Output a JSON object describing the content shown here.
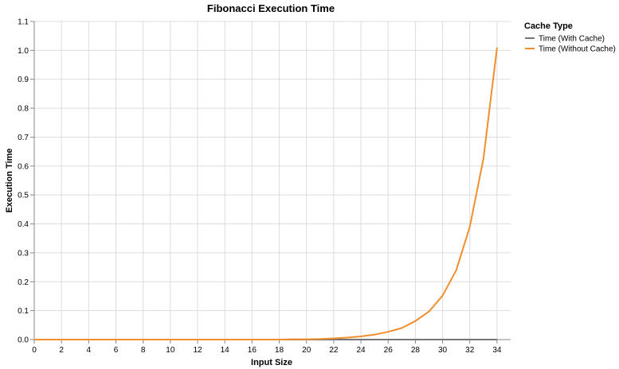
{
  "chart_data": {
    "type": "line",
    "title": "Fibonacci Execution Time",
    "xlabel": "Input Size",
    "ylabel": "Execution Time",
    "xlim": [
      0,
      35
    ],
    "ylim": [
      0,
      1.1
    ],
    "x_ticks": [
      0,
      2,
      4,
      6,
      8,
      10,
      12,
      14,
      16,
      18,
      20,
      22,
      24,
      26,
      28,
      30,
      32,
      34
    ],
    "y_ticks": [
      0,
      0.1,
      0.2,
      0.3,
      0.4,
      0.5,
      0.6,
      0.7,
      0.8,
      0.9,
      1.0,
      1.1
    ],
    "y_tick_labels": [
      "0.0",
      "0.1",
      "0.2",
      "0.3",
      "0.4",
      "0.5",
      "0.6",
      "0.7",
      "0.8",
      "0.9",
      "1.0",
      "1.1"
    ],
    "grid": true,
    "legend_title": "Cache Type",
    "legend_position": "top-right",
    "x": [
      0,
      1,
      2,
      3,
      4,
      5,
      6,
      7,
      8,
      9,
      10,
      11,
      12,
      13,
      14,
      15,
      16,
      17,
      18,
      19,
      20,
      21,
      22,
      23,
      24,
      25,
      26,
      27,
      28,
      29,
      30,
      31,
      32,
      33,
      34
    ],
    "series": [
      {
        "name": "Time (With Cache)",
        "color": "#757575",
        "values": [
          0,
          0,
          0,
          0,
          0,
          0,
          0,
          0,
          0,
          0,
          0,
          0,
          0,
          0,
          0,
          0,
          0,
          0,
          0,
          0,
          0,
          0,
          0,
          0,
          0,
          0,
          0,
          0,
          0,
          0,
          0,
          0,
          0,
          0,
          0
        ]
      },
      {
        "name": "Time (Without Cache)",
        "color": "#f28e2b",
        "values": [
          0,
          0,
          0,
          0,
          0,
          0,
          0,
          0,
          0,
          0,
          0,
          0,
          0,
          0,
          0,
          0,
          0,
          0,
          0,
          0.001,
          0.001,
          0.002,
          0.004,
          0.007,
          0.011,
          0.017,
          0.027,
          0.04,
          0.064,
          0.097,
          0.152,
          0.24,
          0.39,
          0.625,
          1.01
        ]
      }
    ]
  }
}
